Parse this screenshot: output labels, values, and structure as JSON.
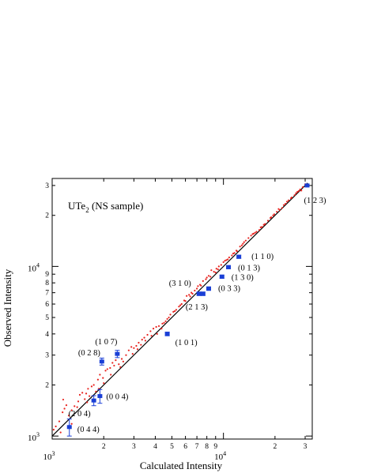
{
  "chart_data": {
    "type": "scatter",
    "title": "UTe2 (NS sample)",
    "title_parts": {
      "base": "UTe",
      "sub": "2",
      "rest": " (NS sample)"
    },
    "xlabel": "Calculated Intensity",
    "ylabel": "Observed Intensity",
    "xscale": "log",
    "yscale": "log",
    "xlim": [
      1000,
      33000
    ],
    "ylim": [
      960,
      33000
    ],
    "grid": false,
    "legend": "none",
    "x_major_ticks": [
      {
        "value": 1000,
        "mantissa": "10",
        "exp": "3"
      },
      {
        "value": 10000,
        "mantissa": "10",
        "exp": "4"
      }
    ],
    "y_major_ticks": [
      {
        "value": 1000,
        "mantissa": "10",
        "exp": "3"
      },
      {
        "value": 10000,
        "mantissa": "10",
        "exp": "4"
      }
    ],
    "x_minor_ticks": [
      {
        "value": 2000,
        "label": "2"
      },
      {
        "value": 3000,
        "label": "3"
      },
      {
        "value": 4000,
        "label": "4"
      },
      {
        "value": 5000,
        "label": "5"
      },
      {
        "value": 6000,
        "label": "6"
      },
      {
        "value": 7000,
        "label": "7"
      },
      {
        "value": 8000,
        "label": "8"
      },
      {
        "value": 9000,
        "label": "9"
      },
      {
        "value": 20000,
        "label": "2"
      },
      {
        "value": 30000,
        "label": "3"
      }
    ],
    "y_minor_ticks": [
      {
        "value": 2000,
        "label": "2"
      },
      {
        "value": 3000,
        "label": "3"
      },
      {
        "value": 4000,
        "label": "4"
      },
      {
        "value": 5000,
        "label": "5"
      },
      {
        "value": 6000,
        "label": "6"
      },
      {
        "value": 7000,
        "label": "7"
      },
      {
        "value": 8000,
        "label": "8"
      },
      {
        "value": 9000,
        "label": "9"
      },
      {
        "value": 20000,
        "label": "2"
      },
      {
        "value": 30000,
        "label": "3"
      }
    ],
    "fit_line": {
      "x": [
        1000,
        31000
      ],
      "y": [
        1000,
        31000
      ],
      "color": "#000000"
    },
    "colors": {
      "labeled_points": "#1a3fd6",
      "background_points": "#e8231f"
    },
    "labeled_points": [
      {
        "label": "(1 2 3)",
        "x": 30800,
        "y": 30000,
        "yerr": 300
      },
      {
        "label": "(1 1 0)",
        "x": 12300,
        "y": 11400,
        "yerr": 250
      },
      {
        "label": "(0 1 3)",
        "x": 10700,
        "y": 9900,
        "yerr": 220
      },
      {
        "label": "(1 3 0)",
        "x": 9800,
        "y": 8700,
        "yerr": 200
      },
      {
        "label": "(0 3 3)",
        "x": 8200,
        "y": 7400,
        "yerr": 180
      },
      {
        "label": "(3 1 0)",
        "x": 7200,
        "y": 6900,
        "yerr": 170
      },
      {
        "label": "(2 1 3)",
        "x": 7600,
        "y": 6900,
        "yerr": 170
      },
      {
        "label": "(1 0 1)",
        "x": 4700,
        "y": 4000,
        "yerr": 100
      },
      {
        "label": "(1 0 7)",
        "x": 2400,
        "y": 3050,
        "yerr": 150
      },
      {
        "label": "(0 2 8)",
        "x": 1950,
        "y": 2750,
        "yerr": 130
      },
      {
        "label": "(0 0 4)",
        "x": 1900,
        "y": 1720,
        "yerr": 160
      },
      {
        "label": "(2 0 4)",
        "x": 1750,
        "y": 1620,
        "yerr": 110
      },
      {
        "label": "(0 4 4)",
        "x": 1260,
        "y": 1130,
        "yerr": 130
      }
    ],
    "background_points": [
      [
        1020,
        1090
      ],
      [
        1050,
        1140
      ],
      [
        1100,
        1220
      ],
      [
        1150,
        1380
      ],
      [
        1180,
        1450
      ],
      [
        1210,
        1520
      ],
      [
        1160,
        1640
      ],
      [
        1250,
        1320
      ],
      [
        1300,
        1420
      ],
      [
        1350,
        1500
      ],
      [
        1420,
        1600
      ],
      [
        1500,
        1800
      ],
      [
        1450,
        1750
      ],
      [
        1580,
        1780
      ],
      [
        1620,
        1900
      ],
      [
        1700,
        1960
      ],
      [
        1750,
        2000
      ],
      [
        1800,
        1830
      ],
      [
        1850,
        2150
      ],
      [
        1900,
        2300
      ],
      [
        1980,
        2200
      ],
      [
        2050,
        2430
      ],
      [
        2100,
        2480
      ],
      [
        2180,
        2520
      ],
      [
        2250,
        2700
      ],
      [
        2350,
        2800
      ],
      [
        2450,
        2650
      ],
      [
        2550,
        2850
      ],
      [
        2700,
        3000
      ],
      [
        2800,
        3200
      ],
      [
        2900,
        3350
      ],
      [
        3000,
        3300
      ],
      [
        3100,
        3400
      ],
      [
        3200,
        3550
      ],
      [
        3350,
        3700
      ],
      [
        3450,
        3800
      ],
      [
        3600,
        3950
      ],
      [
        3750,
        4150
      ],
      [
        3900,
        4300
      ],
      [
        4050,
        4400
      ],
      [
        4200,
        4450
      ],
      [
        4350,
        4300
      ],
      [
        4500,
        4650
      ],
      [
        4700,
        4900
      ],
      [
        4900,
        5200
      ],
      [
        5100,
        5400
      ],
      [
        5300,
        5550
      ],
      [
        5500,
        5800
      ],
      [
        5700,
        6000
      ],
      [
        5900,
        6300
      ],
      [
        6100,
        6700
      ],
      [
        6300,
        6800
      ],
      [
        6500,
        7000
      ],
      [
        6800,
        7200
      ],
      [
        7000,
        7400
      ],
      [
        7300,
        7800
      ],
      [
        7600,
        8200
      ],
      [
        7900,
        8400
      ],
      [
        8200,
        8800
      ],
      [
        8500,
        9500
      ],
      [
        8800,
        9300
      ],
      [
        9100,
        9700
      ],
      [
        9400,
        10000
      ],
      [
        9700,
        10200
      ],
      [
        10000,
        10600
      ],
      [
        10400,
        10900
      ],
      [
        10800,
        11300
      ],
      [
        11200,
        11600
      ],
      [
        11600,
        12000
      ],
      [
        12000,
        12300
      ],
      [
        12500,
        13100
      ],
      [
        13000,
        13600
      ],
      [
        13500,
        14200
      ],
      [
        14000,
        14700
      ],
      [
        14500,
        15200
      ],
      [
        15000,
        15600
      ],
      [
        15600,
        16000
      ],
      [
        16200,
        16400
      ],
      [
        16800,
        17100
      ],
      [
        17500,
        17800
      ],
      [
        18200,
        18600
      ],
      [
        19000,
        19500
      ],
      [
        19800,
        20300
      ],
      [
        20500,
        21000
      ],
      [
        21300,
        21500
      ],
      [
        22000,
        22100
      ],
      [
        23000,
        23400
      ],
      [
        24000,
        24500
      ],
      [
        25000,
        25500
      ],
      [
        26000,
        26300
      ],
      [
        27000,
        27500
      ],
      [
        28000,
        28400
      ],
      [
        29000,
        29300
      ],
      [
        30000,
        30500
      ],
      [
        1300,
        1180
      ],
      [
        1400,
        1480
      ],
      [
        1550,
        1650
      ],
      [
        1650,
        1720
      ],
      [
        2000,
        2050
      ],
      [
        2200,
        2300
      ],
      [
        2600,
        2750
      ],
      [
        2950,
        3050
      ],
      [
        3300,
        3450
      ],
      [
        3800,
        3900
      ],
      [
        4400,
        4600
      ],
      [
        5200,
        5450
      ],
      [
        6000,
        6250
      ],
      [
        6600,
        6900
      ],
      [
        7400,
        7700
      ],
      [
        8400,
        8700
      ],
      [
        9300,
        9600
      ],
      [
        10600,
        11000
      ],
      [
        11900,
        12400
      ],
      [
        13200,
        13900
      ],
      [
        14800,
        15500
      ],
      [
        16500,
        17000
      ],
      [
        18800,
        19300
      ],
      [
        21000,
        21800
      ],
      [
        23500,
        24100
      ],
      [
        26500,
        27000
      ],
      [
        1120,
        1050
      ],
      [
        2300,
        2600
      ],
      [
        3500,
        3650
      ],
      [
        4800,
        5000
      ],
      [
        5600,
        5900
      ],
      [
        6400,
        6650
      ],
      [
        7100,
        7650
      ],
      [
        8000,
        8600
      ],
      [
        9000,
        9200
      ],
      [
        10200,
        10800
      ],
      [
        11400,
        11900
      ],
      [
        12800,
        13300
      ],
      [
        15300,
        15800
      ],
      [
        17200,
        17600
      ],
      [
        19500,
        20000
      ],
      [
        22500,
        23000
      ],
      [
        24800,
        25200
      ],
      [
        1600,
        1580
      ],
      [
        1870,
        1900
      ],
      [
        2500,
        2550
      ],
      [
        3150,
        3250
      ],
      [
        4100,
        4000
      ],
      [
        4600,
        4750
      ],
      [
        28500,
        28000
      ],
      [
        27500,
        27800
      ]
    ]
  }
}
